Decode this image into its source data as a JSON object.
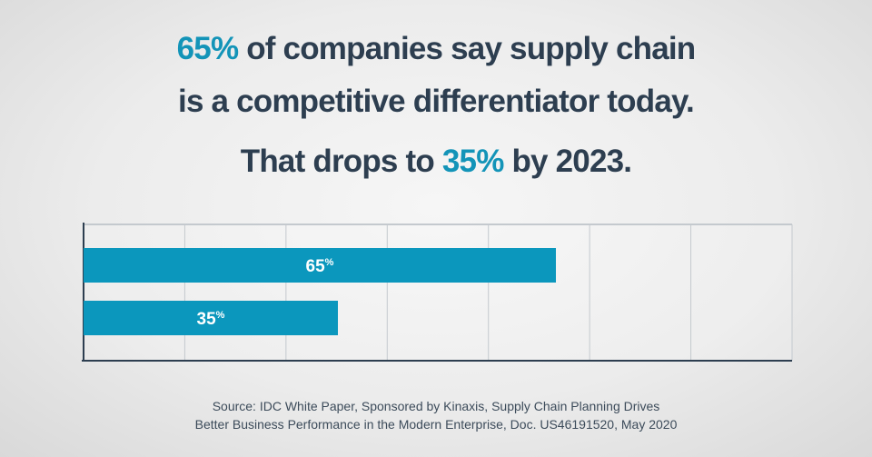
{
  "headline": {
    "line1": [
      {
        "text": "65%",
        "accent": true
      },
      {
        "text": " of companies say supply chain",
        "accent": false
      }
    ],
    "line2": [
      {
        "text": "is a competitive differentiator today.",
        "accent": false
      }
    ],
    "line3": [
      {
        "text": "That drops to ",
        "accent": false
      },
      {
        "text": "35%",
        "accent": true
      },
      {
        "text": " by 2023.",
        "accent": false
      }
    ]
  },
  "colors": {
    "text": "#2d3e50",
    "accent": "#1394b8",
    "bar": "#0b97bd",
    "grid": "#c4c9ce",
    "axis": "#2d3e50"
  },
  "chart_data": {
    "type": "bar",
    "orientation": "horizontal",
    "categories": [
      "",
      ""
    ],
    "values": [
      65,
      35
    ],
    "data_labels": [
      {
        "num": "65",
        "unit": "%"
      },
      {
        "num": "35",
        "unit": "%"
      }
    ],
    "xlim": [
      0,
      100
    ],
    "grid": true,
    "title": "",
    "xlabel": "",
    "ylabel": ""
  },
  "source": {
    "line1": "Source: IDC White Paper, Sponsored by Kinaxis, Supply Chain Planning Drives",
    "line2": "Better Business Performance in the Modern Enterprise, Doc. US46191520, May 2020"
  }
}
